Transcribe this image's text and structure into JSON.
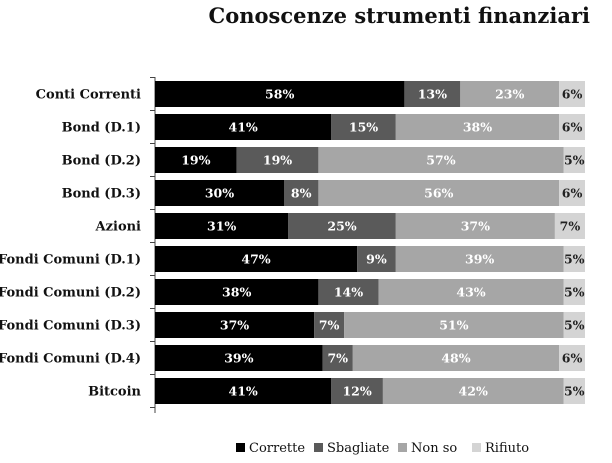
{
  "chart_data": {
    "type": "bar",
    "stacked": true,
    "orientation": "horizontal",
    "title": "Conoscenze strumenti finanziari",
    "categories": [
      "Conti Correnti",
      "Bond (D.1)",
      "Bond (D.2)",
      "Bond (D.3)",
      "Azioni",
      "Fondi Comuni (D.1)",
      "Fondi Comuni (D.2)",
      "Fondi Comuni (D.3)",
      "Fondi Comuni (D.4)",
      "Bitcoin"
    ],
    "series": [
      {
        "name": "Corrette",
        "color": "#000000",
        "label_color": "#ffffff",
        "values": [
          58,
          41,
          19,
          30,
          31,
          47,
          38,
          37,
          39,
          41
        ]
      },
      {
        "name": "Sbagliate",
        "color": "#5a5a5a",
        "label_color": "#ffffff",
        "values": [
          13,
          15,
          19,
          8,
          25,
          9,
          14,
          7,
          7,
          12
        ]
      },
      {
        "name": "Non so",
        "color": "#a6a6a6",
        "label_color": "#ffffff",
        "values": [
          23,
          38,
          57,
          56,
          37,
          39,
          43,
          51,
          48,
          42
        ]
      },
      {
        "name": "Rifiuto",
        "color": "#d4d4d4",
        "label_color": "#222222",
        "values": [
          6,
          6,
          5,
          6,
          7,
          5,
          5,
          5,
          6,
          5
        ]
      }
    ],
    "value_suffix": "%",
    "xlim": [
      0,
      100
    ],
    "legend_position": "bottom",
    "grid": false
  }
}
